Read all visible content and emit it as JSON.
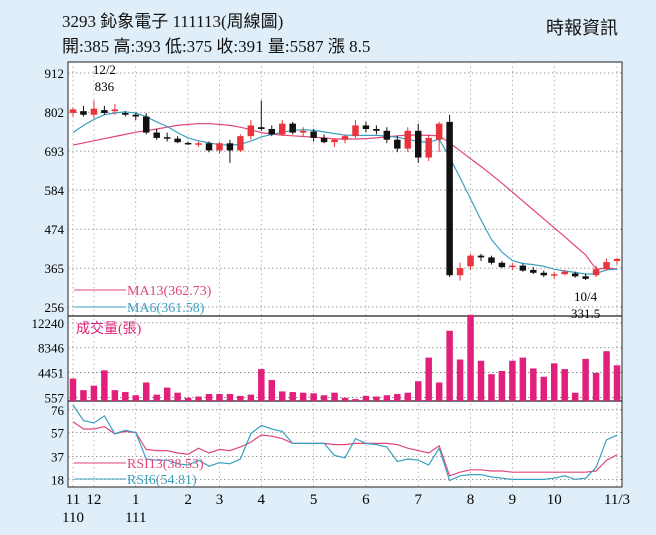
{
  "header": {
    "title": "3293  鈊象電子 111113(周線圖)",
    "quote": "開:385 高:393 低:375 收:391 量:5587 漲 8.5",
    "source": "時報資訊"
  },
  "colors": {
    "up": "#e8343c",
    "down": "#111111",
    "ma13": "#e0467a",
    "ma6": "#3aa0c0",
    "volume": "#e0207a",
    "rsi13": "#e0467a",
    "rsi6": "#3aa0c0",
    "panel": "#ffffff",
    "page": "#dfeef8"
  },
  "chart_data": [
    {
      "type": "candlestick",
      "title": "3293 鈊象電子 111113(周線圖)",
      "y_ticks": [
        256,
        365,
        474,
        584,
        693,
        802,
        912
      ],
      "ylim": [
        256,
        912
      ],
      "x_tick_labels": [
        {
          "i": 0,
          "top": "11",
          "bottom": "110"
        },
        {
          "i": 2,
          "top": "12",
          "bottom": ""
        },
        {
          "i": 6,
          "top": "1",
          "bottom": "111"
        },
        {
          "i": 11,
          "top": "2",
          "bottom": ""
        },
        {
          "i": 14,
          "top": "3",
          "bottom": ""
        },
        {
          "i": 18,
          "top": "4",
          "bottom": ""
        },
        {
          "i": 23,
          "top": "5",
          "bottom": ""
        },
        {
          "i": 28,
          "top": "6",
          "bottom": ""
        },
        {
          "i": 33,
          "top": "7",
          "bottom": ""
        },
        {
          "i": 38,
          "top": "8",
          "bottom": ""
        },
        {
          "i": 42,
          "top": "9",
          "bottom": ""
        },
        {
          "i": 46,
          "top": "10",
          "bottom": ""
        },
        {
          "i": 52,
          "top": "11/3",
          "bottom": ""
        }
      ],
      "annotations": [
        {
          "i": 3,
          "date": "12/2",
          "value": "836",
          "position": "above"
        },
        {
          "i": 49,
          "date": "10/4",
          "value": "331.5",
          "position": "below"
        }
      ],
      "candles": [
        [
          800,
          815,
          790,
          810
        ],
        [
          805,
          820,
          790,
          795
        ],
        [
          795,
          836,
          785,
          812
        ],
        [
          808,
          820,
          795,
          800
        ],
        [
          805,
          825,
          795,
          810
        ],
        [
          800,
          805,
          790,
          795
        ],
        [
          795,
          800,
          780,
          790
        ],
        [
          790,
          800,
          740,
          745
        ],
        [
          745,
          755,
          725,
          730
        ],
        [
          732,
          745,
          720,
          728
        ],
        [
          728,
          735,
          715,
          718
        ],
        [
          716,
          720,
          710,
          713
        ],
        [
          713,
          720,
          705,
          715
        ],
        [
          715,
          720,
          690,
          695
        ],
        [
          695,
          720,
          685,
          715
        ],
        [
          715,
          725,
          660,
          695
        ],
        [
          695,
          740,
          690,
          735
        ],
        [
          735,
          780,
          725,
          765
        ],
        [
          760,
          835,
          750,
          755
        ],
        [
          755,
          765,
          735,
          740
        ],
        [
          740,
          780,
          735,
          770
        ],
        [
          770,
          775,
          740,
          745
        ],
        [
          745,
          760,
          735,
          750
        ],
        [
          748,
          755,
          720,
          730
        ],
        [
          730,
          740,
          715,
          718
        ],
        [
          718,
          730,
          705,
          725
        ],
        [
          725,
          740,
          715,
          735
        ],
        [
          735,
          780,
          730,
          765
        ],
        [
          765,
          775,
          745,
          755
        ],
        [
          755,
          765,
          740,
          750
        ],
        [
          750,
          760,
          715,
          725
        ],
        [
          725,
          735,
          690,
          700
        ],
        [
          700,
          760,
          690,
          750
        ],
        [
          750,
          770,
          660,
          675
        ],
        [
          675,
          740,
          665,
          730
        ],
        [
          725,
          775,
          690,
          770
        ],
        [
          775,
          795,
          340,
          345
        ],
        [
          345,
          380,
          330,
          365
        ],
        [
          370,
          405,
          360,
          400
        ],
        [
          400,
          405,
          385,
          395
        ],
        [
          395,
          400,
          375,
          380
        ],
        [
          380,
          385,
          365,
          368
        ],
        [
          368,
          380,
          360,
          372
        ],
        [
          372,
          378,
          355,
          358
        ],
        [
          360,
          368,
          348,
          352
        ],
        [
          352,
          358,
          340,
          345
        ],
        [
          345,
          355,
          335,
          348
        ],
        [
          348,
          360,
          345,
          355
        ],
        [
          350,
          355,
          338,
          342
        ],
        [
          342,
          350,
          331.5,
          335
        ],
        [
          345,
          372,
          340,
          362
        ],
        [
          362,
          392,
          358,
          382
        ],
        [
          385,
          393,
          375,
          391
        ]
      ],
      "ma_series": [
        {
          "name": "MA13",
          "label": "MA13(362.73)",
          "values": [
            710,
            716,
            722,
            728,
            734,
            740,
            746,
            750,
            755,
            760,
            765,
            768,
            770,
            770,
            768,
            765,
            760,
            753,
            745,
            741,
            738,
            736,
            734,
            732,
            730,
            727,
            727,
            727,
            728,
            730,
            733,
            736,
            738,
            738,
            737,
            736,
            716,
            694,
            672,
            650,
            627,
            603,
            578,
            553,
            528,
            503,
            478,
            453,
            427,
            402,
            362,
            365,
            363
          ]
        },
        {
          "name": "MA6",
          "label": "MA6(361.58)",
          "values": [
            745,
            765,
            782,
            795,
            800,
            803,
            800,
            790,
            775,
            762,
            745,
            730,
            722,
            716,
            711,
            710,
            712,
            721,
            733,
            740,
            746,
            751,
            753,
            751,
            747,
            742,
            738,
            737,
            737,
            737,
            735,
            732,
            726,
            720,
            718,
            726,
            676,
            618,
            560,
            500,
            445,
            410,
            386,
            378,
            375,
            370,
            362,
            357,
            353,
            348,
            350,
            360,
            362
          ]
        }
      ]
    },
    {
      "type": "bar",
      "title": "成交量(張)",
      "y_ticks": [
        557,
        4451,
        8346,
        12240
      ],
      "ylim": [
        0,
        13000
      ],
      "values": [
        3500,
        1700,
        2400,
        4800,
        1700,
        1400,
        900,
        2900,
        1000,
        2100,
        1300,
        500,
        700,
        1100,
        1100,
        1100,
        800,
        1000,
        5000,
        3300,
        1500,
        1400,
        1300,
        1200,
        900,
        1300,
        500,
        300,
        800,
        700,
        900,
        1100,
        1300,
        3100,
        6800,
        2900,
        11000,
        6500,
        13500,
        6300,
        4200,
        4700,
        6300,
        6800,
        5100,
        3800,
        5900,
        5000,
        1300,
        6600,
        4400,
        7800,
        5587
      ]
    },
    {
      "type": "line",
      "y_ticks": [
        18,
        37,
        57,
        76
      ],
      "ylim": [
        15,
        80
      ],
      "series": [
        {
          "name": "RSI13",
          "label": "RSI13(38.53)",
          "values": [
            66,
            60,
            60,
            62,
            56,
            58,
            57,
            43,
            42,
            42,
            40,
            39,
            44,
            40,
            43,
            42,
            45,
            49,
            55,
            54,
            52,
            48,
            48,
            48,
            48,
            47,
            47,
            48,
            48,
            48,
            48,
            47,
            44,
            42,
            40,
            46,
            21,
            24,
            26,
            26,
            25,
            25,
            24,
            24,
            24,
            24,
            24,
            24,
            24,
            24,
            25,
            34,
            38.53
          ]
        },
        {
          "name": "RSI6",
          "label": "RSI6(54.81)",
          "values": [
            80,
            67,
            65,
            71,
            56,
            59,
            57,
            35,
            34,
            34,
            31,
            30,
            34,
            29,
            32,
            31,
            35,
            56,
            63,
            60,
            58,
            48,
            48,
            48,
            48,
            38,
            36,
            52,
            48,
            47,
            45,
            33,
            35,
            34,
            30,
            44,
            17,
            21,
            22,
            22,
            20,
            19,
            18,
            18,
            18,
            18,
            19,
            21,
            18,
            19,
            28,
            51,
            54.81
          ]
        }
      ]
    }
  ]
}
